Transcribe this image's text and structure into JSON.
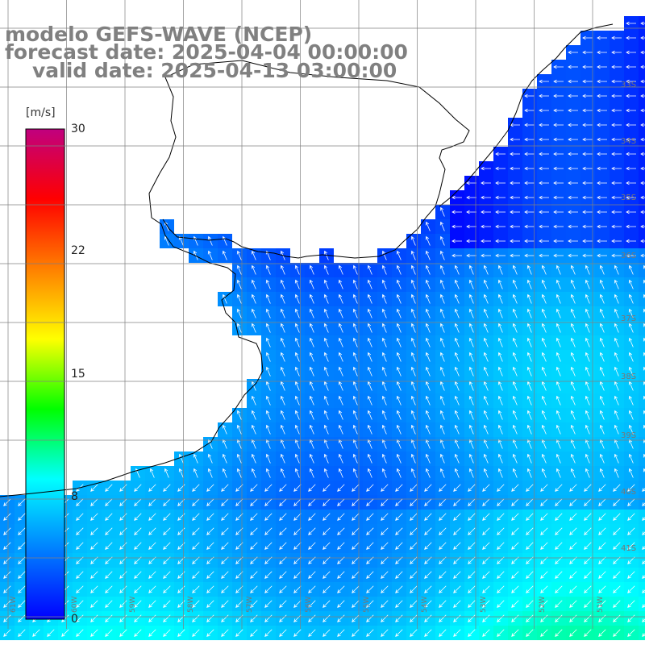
{
  "map": {
    "title_lines": [
      "modelo GEFS-WAVE (NCEP)",
      "forecast date: 2025-04-04 00:00:00",
      "valid date: 2025-04-13 03:00:00"
    ],
    "colorbar": {
      "unit": "[m/s]",
      "ticks": [
        "30",
        "22",
        "15",
        "8",
        "0"
      ],
      "range": [
        0,
        30
      ],
      "stops": [
        "#0000ff",
        "#0080ff",
        "#00ffff",
        "#00ff00",
        "#ffff00",
        "#ff8000",
        "#ff0000",
        "#c0007f"
      ]
    },
    "lat_labels": [
      "33S",
      "34S",
      "35S",
      "36S",
      "37S",
      "38S",
      "39S",
      "40S",
      "41S"
    ],
    "lon_labels": [
      "61W",
      "60W",
      "59W",
      "58W",
      "57W",
      "56W",
      "55W",
      "54W",
      "53W",
      "52W",
      "51W"
    ],
    "land_color": "#ffffff",
    "grid_color": "#808080"
  }
}
